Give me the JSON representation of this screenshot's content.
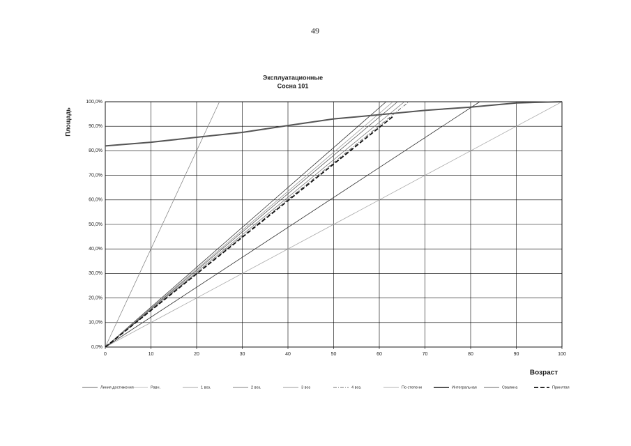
{
  "page_number": "49",
  "chart_data": {
    "type": "line",
    "title": "Эксплуатационные",
    "subtitle": "Сосна 101",
    "x_label": "Возраст",
    "y_label": "Площадь",
    "xlim": [
      0,
      100
    ],
    "ylim": [
      0,
      100
    ],
    "xticks": [
      0,
      10,
      20,
      30,
      40,
      50,
      60,
      70,
      80,
      90,
      100
    ],
    "yticks": [
      {
        "value": 0,
        "label": "0,0%"
      },
      {
        "value": 10,
        "label": "10,0%"
      },
      {
        "value": 20,
        "label": "20,0%"
      },
      {
        "value": 30,
        "label": "30,0%"
      },
      {
        "value": 40,
        "label": "40,0%"
      },
      {
        "value": 50,
        "label": "50,0%"
      },
      {
        "value": 60,
        "label": "60,0%"
      },
      {
        "value": 70,
        "label": "70,0%"
      },
      {
        "value": 80,
        "label": "80,0%"
      },
      {
        "value": 90,
        "label": "90,0%"
      },
      {
        "value": 100,
        "label": "100,0%"
      }
    ],
    "grid": true,
    "series": [
      {
        "name": "Линия достижения",
        "color": "#333333",
        "x": [
          0,
          61.5
        ],
        "values": [
          0,
          100
        ]
      },
      {
        "name": "Равн.",
        "color": "#aaaaaa",
        "x": [
          0,
          100
        ],
        "values": [
          0,
          100
        ]
      },
      {
        "name": "1 воз.",
        "color": "#888888",
        "x": [
          0,
          25
        ],
        "values": [
          0,
          100
        ]
      },
      {
        "name": "2 воз.",
        "color": "#555555",
        "x": [
          0,
          64
        ],
        "values": [
          0,
          100
        ]
      },
      {
        "name": "3 воз",
        "color": "#777777",
        "x": [
          0,
          65.5
        ],
        "values": [
          0,
          100
        ]
      },
      {
        "name": "4 воз.",
        "color": "#444444",
        "x": [
          0,
          66.5
        ],
        "values": [
          0,
          100
        ]
      },
      {
        "name": "По степени",
        "color": "#999999",
        "x": [
          0,
          63
        ],
        "values": [
          0,
          100
        ]
      },
      {
        "name": "Интегральная",
        "color": "#555555",
        "x": [
          0,
          10,
          20,
          30,
          40,
          50,
          60,
          70,
          80,
          90,
          100
        ],
        "values": [
          82,
          83.5,
          85.5,
          87.5,
          90.3,
          93,
          94.7,
          96.5,
          97.8,
          99.5,
          100
        ]
      },
      {
        "name": "Свалина",
        "color": "#333333",
        "x": [
          0,
          82
        ],
        "values": [
          0,
          100
        ]
      },
      {
        "name": "Принятая",
        "color": "#111111",
        "x": [
          0,
          63
        ],
        "values": [
          0,
          94
        ]
      }
    ]
  }
}
